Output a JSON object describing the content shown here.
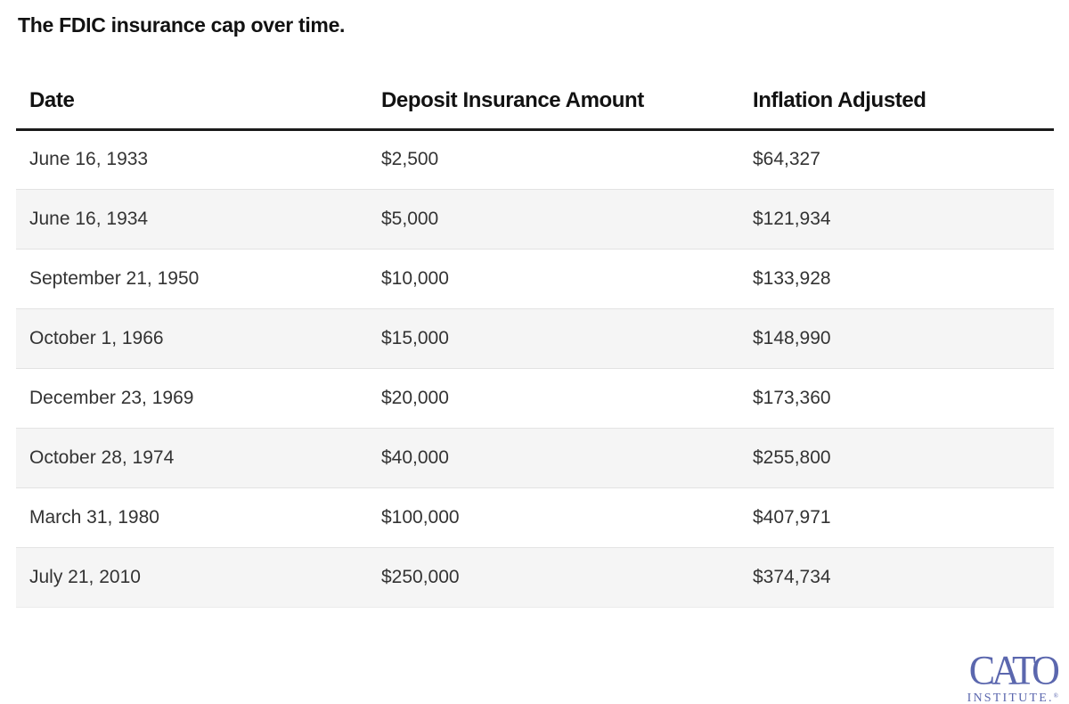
{
  "chart_data": {
    "type": "table",
    "title": "The FDIC insurance cap over time.",
    "columns": [
      "Date",
      "Deposit Insurance Amount",
      "Inflation Adjusted"
    ],
    "rows": [
      [
        "June 16, 1933",
        "$2,500",
        "$64,327"
      ],
      [
        "June 16, 1934",
        "$5,000",
        "$121,934"
      ],
      [
        "September 21, 1950",
        "$10,000",
        "$133,928"
      ],
      [
        "October 1, 1966",
        "$15,000",
        "$148,990"
      ],
      [
        "December 23, 1969",
        "$20,000",
        "$173,360"
      ],
      [
        "October 28, 1974",
        "$40,000",
        "$255,800"
      ],
      [
        "March 31, 1980",
        "$100,000",
        "$407,971"
      ],
      [
        "July 21, 2010",
        "$250,000",
        "$374,734"
      ]
    ],
    "layout": {
      "zebra_striping": true,
      "striped_rows": "even",
      "header_rule": "thick-dark"
    }
  },
  "logo": {
    "line1": "CATO",
    "line2": "INSTITUTE.",
    "mark": "®",
    "color": "#5b67ae"
  },
  "colors": {
    "background": "#ffffff",
    "title_text": "#121212",
    "body_text": "#333333",
    "row_alt_background": "#f5f5f5",
    "row_divider": "#e3e3e3",
    "header_rule": "#1a1a1a",
    "logo_blue": "#5b67ae"
  }
}
